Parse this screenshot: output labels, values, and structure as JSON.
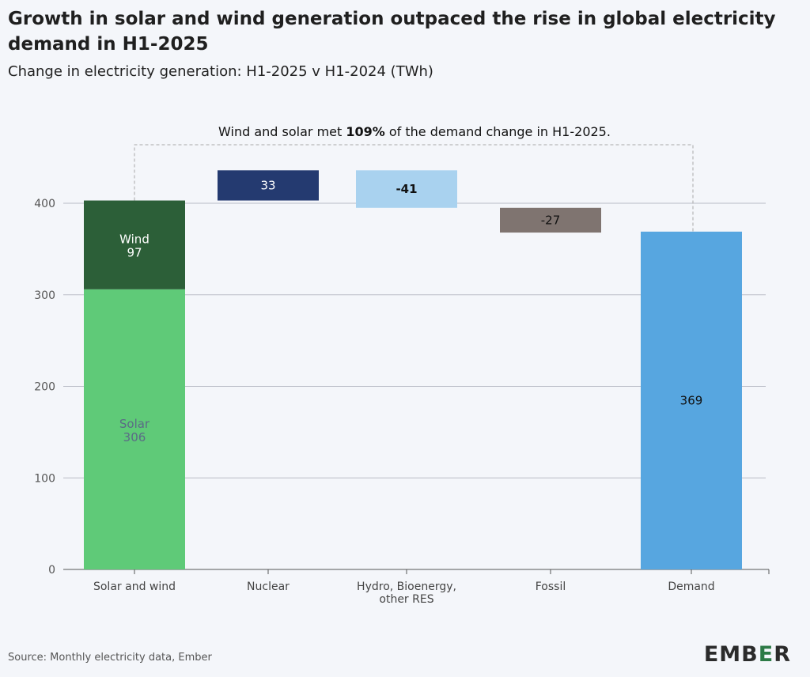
{
  "title": "Growth in solar and wind generation outpaced the rise in global electricity demand in H1-2025",
  "subtitle": "Change in electricity generation: H1-2025 v H1-2024 (TWh)",
  "annotation": {
    "prefix": "Wind and solar met ",
    "bold": "109%",
    "suffix": " of the demand change in H1-2025."
  },
  "source": "Source: Monthly electricity data, Ember",
  "logo": {
    "pre": "EMB",
    "accent": "E",
    "post": "R"
  },
  "chart_data": {
    "type": "bar",
    "subtype": "waterfall",
    "categories": [
      "Solar and wind",
      "Nuclear",
      "Hydro, Bioenergy, other RES",
      "Fossil",
      "Demand"
    ],
    "category_labels": [
      [
        "Solar and wind"
      ],
      [
        "Nuclear"
      ],
      [
        "Hydro, Bioenergy,",
        "other RES"
      ],
      [
        "Fossil"
      ],
      [
        "Demand"
      ]
    ],
    "bars": [
      {
        "category": "Solar and wind",
        "segments": [
          {
            "name": "Solar",
            "base": 0,
            "value": 306,
            "color": "#5fca78",
            "label": "Solar",
            "value_label": "306",
            "text_color": "#5b6b86"
          },
          {
            "name": "Wind",
            "base": 306,
            "value": 97,
            "color": "#2c5f38",
            "label": "Wind",
            "value_label": "97",
            "text_color": "#ffffff"
          }
        ]
      },
      {
        "category": "Nuclear",
        "segments": [
          {
            "name": "Nuclear",
            "base": 403,
            "value": 33,
            "color": "#243a70",
            "label": "",
            "value_label": "33",
            "text_color": "#ffffff"
          }
        ]
      },
      {
        "category": "Hydro, Bioenergy, other RES",
        "segments": [
          {
            "name": "Hydro, Bioenergy, other RES",
            "base": 436,
            "value": -41,
            "color": "#a9d2ef",
            "label": "",
            "value_label": "-41",
            "text_color": "#111111",
            "bold": true
          }
        ]
      },
      {
        "category": "Fossil",
        "segments": [
          {
            "name": "Fossil",
            "base": 395,
            "value": -27,
            "color": "#7f7470",
            "label": "",
            "value_label": "-27",
            "text_color": "#111111"
          }
        ]
      },
      {
        "category": "Demand",
        "segments": [
          {
            "name": "Demand",
            "base": 0,
            "value": 369,
            "color": "#57a6e0",
            "label": "",
            "value_label": "369",
            "text_color": "#111111"
          }
        ]
      }
    ],
    "ylim": [
      0,
      400
    ],
    "yticks": [
      0,
      100,
      200,
      300,
      400
    ],
    "grid": true,
    "xlabel": "",
    "ylabel": ""
  }
}
